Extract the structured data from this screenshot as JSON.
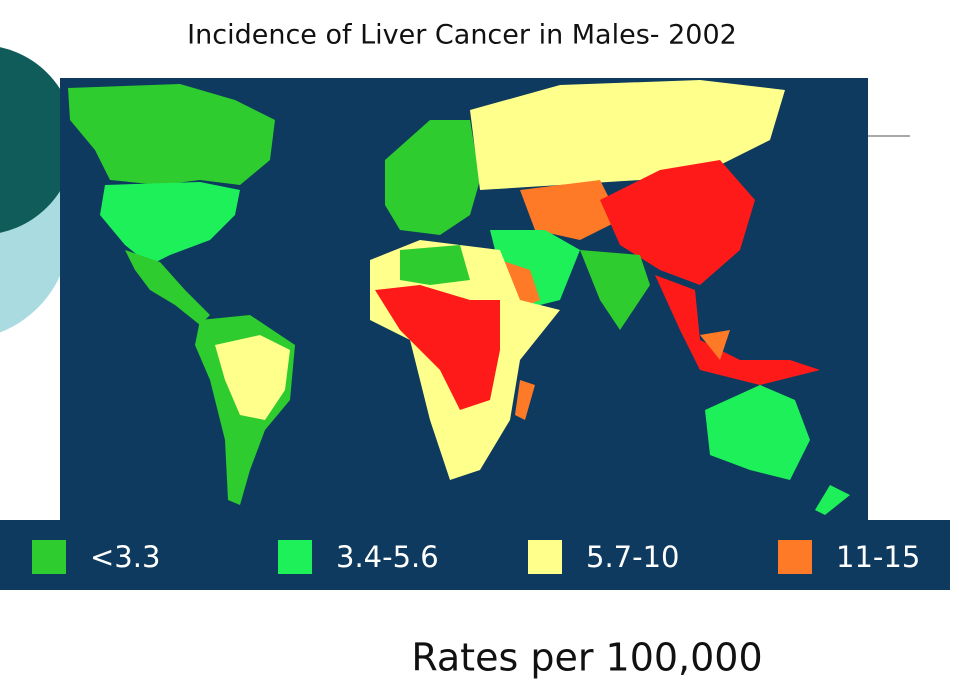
{
  "header": {
    "title": "Incidence of Liver Cancer in Males- 2002"
  },
  "legend": [
    {
      "label": "<3.3",
      "color": "#2ecc2e"
    },
    {
      "label": "3.4-5.6",
      "color": "#1ef05a"
    },
    {
      "label": "5.7-10",
      "color": "#ffff8c"
    },
    {
      "label": "11-15",
      "color": "#ff7a26"
    }
  ],
  "footer": {
    "text": "Rates per 100,000"
  }
}
